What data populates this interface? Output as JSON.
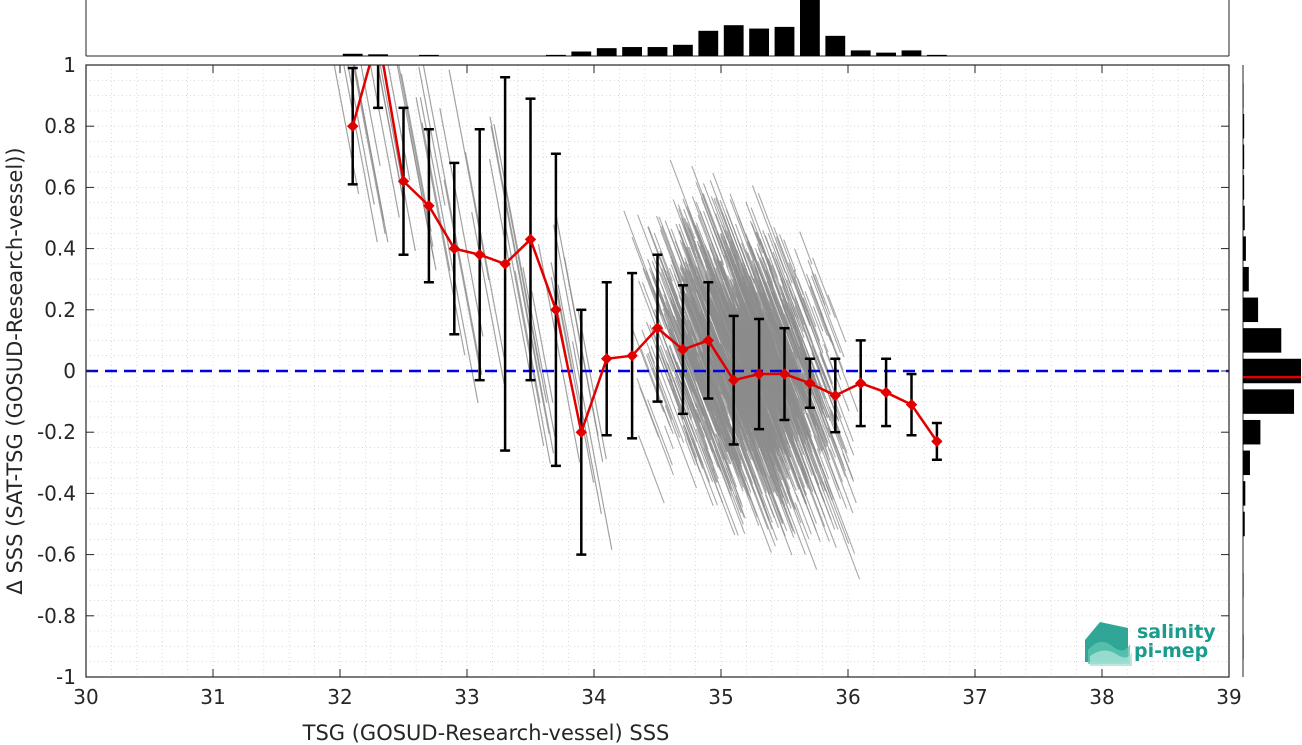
{
  "chart_data": {
    "type": "scatter",
    "xlabel": "TSG (GOSUD-Research-vessel) SSS",
    "ylabel": "Δ SSS (SAT-TSG (GOSUD-Research-vessel))",
    "xlim": [
      30,
      39
    ],
    "ylim": [
      -1,
      1
    ],
    "xticks": [
      30,
      31,
      32,
      33,
      34,
      35,
      36,
      37,
      38,
      39
    ],
    "yticks": [
      -1,
      -0.8,
      -0.6,
      -0.4,
      -0.2,
      0,
      0.2,
      0.4,
      0.6,
      0.8,
      1
    ],
    "grid": "dotted",
    "zero_line": {
      "y": 0,
      "color": "#0000e0",
      "style": "dashed"
    },
    "binned_mean": {
      "color": "#e00000",
      "x": [
        32.1,
        32.3,
        32.5,
        32.7,
        32.9,
        33.1,
        33.3,
        33.5,
        33.7,
        33.9,
        34.1,
        34.3,
        34.5,
        34.7,
        34.9,
        35.1,
        35.3,
        35.5,
        35.7,
        35.9,
        36.1,
        36.3,
        36.5,
        36.7
      ],
      "y": [
        0.8,
        1.1,
        0.62,
        0.54,
        0.4,
        0.38,
        0.35,
        0.43,
        0.2,
        -0.2,
        0.04,
        0.05,
        0.14,
        0.07,
        0.1,
        -0.03,
        -0.01,
        -0.01,
        -0.04,
        -0.08,
        -0.04,
        -0.07,
        -0.11,
        -0.23
      ],
      "err": [
        0.19,
        0.24,
        0.24,
        0.25,
        0.28,
        0.41,
        0.61,
        0.46,
        0.51,
        0.4,
        0.25,
        0.27,
        0.24,
        0.21,
        0.19,
        0.21,
        0.18,
        0.15,
        0.08,
        0.12,
        0.14,
        0.11,
        0.1,
        0.06
      ]
    },
    "scatter_density": {
      "color": "#808080",
      "description_points": [
        [
          32.0,
          0.95
        ],
        [
          33.4,
          0.0
        ],
        [
          34.2,
          0.6
        ],
        [
          35.0,
          0.3
        ],
        [
          35.5,
          -0.2
        ],
        [
          36.2,
          -0.1
        ],
        [
          34.8,
          -0.5
        ],
        [
          35.6,
          -0.8
        ]
      ]
    },
    "top_histogram": {
      "bin_centers": [
        32.1,
        32.3,
        32.5,
        32.7,
        32.9,
        33.1,
        33.3,
        33.5,
        33.7,
        33.9,
        34.1,
        34.3,
        34.5,
        34.7,
        34.9,
        35.1,
        35.3,
        35.5,
        35.7,
        35.9,
        36.1,
        36.3,
        36.5,
        36.7
      ],
      "rel_counts": [
        0.04,
        0.03,
        0.0,
        0.02,
        0.0,
        0.0,
        0.0,
        0.0,
        0.02,
        0.08,
        0.14,
        0.16,
        0.16,
        0.2,
        0.45,
        0.55,
        0.49,
        0.52,
        1.0,
        0.36,
        0.1,
        0.06,
        0.1,
        0.02
      ]
    },
    "right_histogram": {
      "bin_centers": [
        -0.9,
        -0.7,
        -0.5,
        -0.4,
        -0.3,
        -0.2,
        -0.1,
        0.0,
        0.1,
        0.2,
        0.3,
        0.4,
        0.5,
        0.6,
        0.7,
        0.8,
        0.9
      ],
      "rel_counts": [
        0.01,
        0.01,
        0.03,
        0.04,
        0.12,
        0.3,
        0.88,
        1.0,
        0.66,
        0.26,
        0.1,
        0.05,
        0.03,
        0.02,
        0.02,
        0.02,
        0.01
      ],
      "median_line": {
        "y": -0.02,
        "color": "#e00000"
      }
    }
  },
  "logo": {
    "line1": "salinity",
    "line2": "pi-mep"
  }
}
